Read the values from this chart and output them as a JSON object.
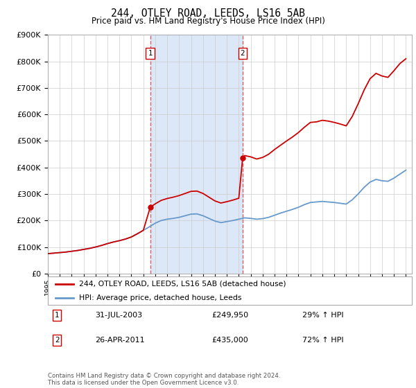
{
  "title": "244, OTLEY ROAD, LEEDS, LS16 5AB",
  "subtitle": "Price paid vs. HM Land Registry's House Price Index (HPI)",
  "legend_line1": "244, OTLEY ROAD, LEEDS, LS16 5AB (detached house)",
  "legend_line2": "HPI: Average price, detached house, Leeds",
  "annotation1_label": "1",
  "annotation1_date": "31-JUL-2003",
  "annotation1_price": "£249,950",
  "annotation1_hpi": "29% ↑ HPI",
  "annotation2_label": "2",
  "annotation2_date": "26-APR-2011",
  "annotation2_price": "£435,000",
  "annotation2_hpi": "72% ↑ HPI",
  "footer": "Contains HM Land Registry data © Crown copyright and database right 2024.\nThis data is licensed under the Open Government Licence v3.0.",
  "red_color": "#cc0000",
  "blue_color": "#6699cc",
  "vline_color": "#e06060",
  "background_shade": "#dce8f8",
  "ylim": [
    0,
    900000
  ],
  "yticks": [
    0,
    100000,
    200000,
    300000,
    400000,
    500000,
    600000,
    700000,
    800000,
    900000
  ],
  "ytick_labels": [
    "£0",
    "£100K",
    "£200K",
    "£300K",
    "£400K",
    "£500K",
    "£600K",
    "£700K",
    "£800K",
    "£900K"
  ],
  "xlim_start": 1995.0,
  "xlim_end": 2025.5,
  "sale1_year": 2003.58,
  "sale2_year": 2011.32,
  "sale1_price": 249950,
  "sale2_price": 435000,
  "hpi_years": [
    1995,
    1995.5,
    1996,
    1996.5,
    1997,
    1997.5,
    1998,
    1998.5,
    1999,
    1999.5,
    2000,
    2000.5,
    2001,
    2001.5,
    2002,
    2002.5,
    2003,
    2003.5,
    2004,
    2004.5,
    2005,
    2005.5,
    2006,
    2006.5,
    2007,
    2007.5,
    2008,
    2008.5,
    2009,
    2009.5,
    2010,
    2010.5,
    2011,
    2011.5,
    2012,
    2012.5,
    2013,
    2013.5,
    2014,
    2014.5,
    2015,
    2015.5,
    2016,
    2016.5,
    2017,
    2017.5,
    2018,
    2018.5,
    2019,
    2019.5,
    2020,
    2020.5,
    2021,
    2021.5,
    2022,
    2022.5,
    2023,
    2023.5,
    2024,
    2024.5,
    2025
  ],
  "hpi_values": [
    75000,
    77000,
    79000,
    81000,
    84000,
    87000,
    91000,
    95000,
    100000,
    106000,
    113000,
    119000,
    124000,
    130000,
    138000,
    150000,
    163000,
    176000,
    190000,
    200000,
    205000,
    208000,
    212000,
    218000,
    224000,
    225000,
    218000,
    208000,
    198000,
    192000,
    196000,
    200000,
    205000,
    210000,
    208000,
    205000,
    207000,
    212000,
    220000,
    228000,
    235000,
    242000,
    250000,
    260000,
    268000,
    270000,
    272000,
    270000,
    268000,
    265000,
    262000,
    278000,
    300000,
    325000,
    345000,
    355000,
    350000,
    348000,
    360000,
    375000,
    390000
  ],
  "red_years_before1": [
    1995,
    1995.5,
    1996,
    1996.5,
    1997,
    1997.5,
    1998,
    1998.5,
    1999,
    1999.5,
    2000,
    2000.5,
    2001,
    2001.5,
    2002,
    2002.5,
    2003,
    2003.58
  ],
  "red_values_before1": [
    75000,
    77000,
    79000,
    81000,
    84000,
    87000,
    91000,
    95000,
    100000,
    106000,
    113000,
    119000,
    124000,
    130000,
    138000,
    150000,
    163000,
    249950
  ],
  "red_years_seg2": [
    2003.58,
    2004,
    2004.5,
    2005,
    2005.5,
    2006,
    2006.5,
    2007,
    2007.5,
    2008,
    2008.5,
    2009,
    2009.5,
    2010,
    2010.5,
    2011,
    2011.32
  ],
  "red_values_seg2": [
    249950,
    263000,
    276000,
    283000,
    288000,
    294000,
    302000,
    310000,
    311000,
    302000,
    288000,
    274000,
    266000,
    271000,
    277000,
    284000,
    435000
  ],
  "red_years_seg3": [
    2011.32,
    2011.5,
    2012,
    2012.5,
    2013,
    2013.5,
    2014,
    2014.5,
    2015,
    2015.5,
    2016,
    2016.5,
    2017,
    2017.5,
    2018,
    2018.5,
    2019,
    2019.5,
    2020,
    2020.5,
    2021,
    2021.5,
    2022,
    2022.5,
    2023,
    2023.5,
    2024,
    2024.5,
    2025
  ],
  "red_values_seg3": [
    435000,
    445000,
    440000,
    432000,
    438000,
    450000,
    468000,
    484000,
    500000,
    515000,
    532000,
    552000,
    570000,
    572000,
    578000,
    575000,
    570000,
    564000,
    557000,
    592000,
    640000,
    692000,
    735000,
    755000,
    745000,
    740000,
    765000,
    792000,
    810000
  ]
}
